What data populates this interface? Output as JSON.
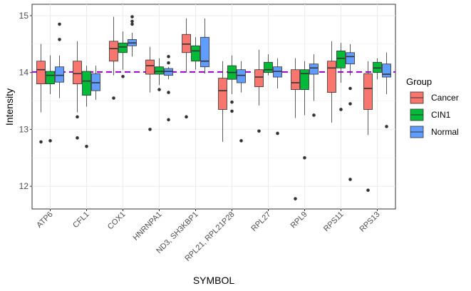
{
  "chart_data": {
    "type": "boxplot",
    "xlabel": "SYMBOL",
    "ylabel": "Intensity",
    "ylim": [
      11.6,
      15.2
    ],
    "yticks": [
      12,
      13,
      14,
      15
    ],
    "grid": true,
    "legend_position": "right",
    "legend_title": "Group",
    "reference_line": {
      "y": 14.01,
      "color": "#9900CC",
      "style": "dashed"
    },
    "categories": [
      "ATP6",
      "CFL1",
      "COX1",
      "HNRNPA1",
      "ND3, SH3KBP1",
      "RPL21, RPL21P28",
      "RPL27",
      "RPL9",
      "RPS11",
      "RPS13"
    ],
    "series": [
      {
        "name": "Cancer",
        "color": "#F8766D",
        "boxes": [
          {
            "lower": 13.3,
            "q1": 13.8,
            "median": 14.05,
            "q3": 14.2,
            "upper": 14.5,
            "outliers": [
              12.78
            ]
          },
          {
            "lower": 13.3,
            "q1": 13.8,
            "median": 13.98,
            "q3": 14.2,
            "upper": 14.55,
            "outliers": [
              13.22,
              12.85
            ]
          },
          {
            "lower": 13.95,
            "q1": 14.2,
            "median": 14.42,
            "q3": 14.55,
            "upper": 14.98,
            "outliers": [
              13.55
            ]
          },
          {
            "lower": 13.65,
            "q1": 13.97,
            "median": 14.12,
            "q3": 14.22,
            "upper": 14.45,
            "outliers": [
              13.0
            ]
          },
          {
            "lower": 14.0,
            "q1": 14.35,
            "median": 14.5,
            "q3": 14.67,
            "upper": 14.95,
            "outliers": [
              13.22
            ]
          },
          {
            "lower": 12.78,
            "q1": 13.35,
            "median": 13.68,
            "q3": 13.9,
            "upper": 14.2,
            "outliers": []
          },
          {
            "lower": 13.42,
            "q1": 13.75,
            "median": 13.92,
            "q3": 14.05,
            "upper": 14.4,
            "outliers": [
              12.97
            ]
          },
          {
            "lower": 13.2,
            "q1": 13.7,
            "median": 13.82,
            "q3": 14.05,
            "upper": 14.25,
            "outliers": [
              11.78
            ]
          },
          {
            "lower": 13.12,
            "q1": 13.65,
            "median": 14.08,
            "q3": 14.2,
            "upper": 14.55,
            "outliers": []
          },
          {
            "lower": 12.9,
            "q1": 13.35,
            "median": 13.72,
            "q3": 13.98,
            "upper": 14.2,
            "outliers": [
              11.93
            ]
          }
        ]
      },
      {
        "name": "CIN1",
        "color": "#00BA38",
        "boxes": [
          {
            "lower": 13.62,
            "q1": 13.8,
            "median": 13.95,
            "q3": 14.02,
            "upper": 14.3,
            "outliers": [
              12.8
            ]
          },
          {
            "lower": 13.4,
            "q1": 13.6,
            "median": 13.85,
            "q3": 14.02,
            "upper": 14.12,
            "outliers": [
              12.7
            ]
          },
          {
            "lower": 14.05,
            "q1": 14.35,
            "median": 14.45,
            "q3": 14.52,
            "upper": 14.72,
            "outliers": [
              13.93
            ]
          },
          {
            "lower": 13.78,
            "q1": 13.97,
            "median": 14.02,
            "q3": 14.1,
            "upper": 14.25,
            "outliers": [
              13.7
            ]
          },
          {
            "lower": 14.05,
            "q1": 14.2,
            "median": 14.38,
            "q3": 14.47,
            "upper": 14.62,
            "outliers": []
          },
          {
            "lower": 13.62,
            "q1": 13.88,
            "median": 14.0,
            "q3": 14.12,
            "upper": 14.3,
            "outliers": [
              13.48,
              13.32
            ]
          },
          {
            "lower": 13.95,
            "q1": 14.0,
            "median": 14.05,
            "q3": 14.18,
            "upper": 14.32,
            "outliers": []
          },
          {
            "lower": 13.25,
            "q1": 13.7,
            "median": 13.98,
            "q3": 14.05,
            "upper": 14.2,
            "outliers": [
              12.5
            ]
          },
          {
            "lower": 13.82,
            "q1": 14.08,
            "median": 14.25,
            "q3": 14.38,
            "upper": 14.52,
            "outliers": [
              13.35
            ]
          },
          {
            "lower": 13.88,
            "q1": 14.0,
            "median": 14.08,
            "q3": 14.18,
            "upper": 14.25,
            "outliers": []
          }
        ]
      },
      {
        "name": "Normal",
        "color": "#619CFF",
        "boxes": [
          {
            "lower": 13.55,
            "q1": 13.83,
            "median": 13.95,
            "q3": 14.1,
            "upper": 14.3,
            "outliers": [
              14.85,
              14.58
            ]
          },
          {
            "lower": 13.52,
            "q1": 13.68,
            "median": 13.82,
            "q3": 13.98,
            "upper": 14.12,
            "outliers": []
          },
          {
            "lower": 14.28,
            "q1": 14.47,
            "median": 14.52,
            "q3": 14.58,
            "upper": 14.7,
            "outliers": [
              14.98,
              14.9,
              14.85
            ]
          },
          {
            "lower": 13.88,
            "q1": 13.95,
            "median": 14.02,
            "q3": 14.07,
            "upper": 14.1,
            "outliers": [
              14.28,
              14.17,
              13.65,
              13.17
            ]
          },
          {
            "lower": 13.98,
            "q1": 14.1,
            "median": 14.2,
            "q3": 14.62,
            "upper": 14.95,
            "outliers": []
          },
          {
            "lower": 13.65,
            "q1": 13.82,
            "median": 13.95,
            "q3": 14.05,
            "upper": 14.2,
            "outliers": [
              12.8
            ]
          },
          {
            "lower": 13.72,
            "q1": 13.92,
            "median": 14.02,
            "q3": 14.1,
            "upper": 14.25,
            "outliers": [
              12.93
            ]
          },
          {
            "lower": 13.5,
            "q1": 13.97,
            "median": 14.08,
            "q3": 14.15,
            "upper": 14.32,
            "outliers": [
              13.25
            ]
          },
          {
            "lower": 13.95,
            "q1": 14.15,
            "median": 14.28,
            "q3": 14.35,
            "upper": 14.5,
            "outliers": [
              13.72,
              13.45,
              12.12
            ]
          },
          {
            "lower": 13.62,
            "q1": 13.92,
            "median": 13.97,
            "q3": 14.15,
            "upper": 14.35,
            "outliers": [
              13.05
            ]
          }
        ]
      }
    ]
  }
}
